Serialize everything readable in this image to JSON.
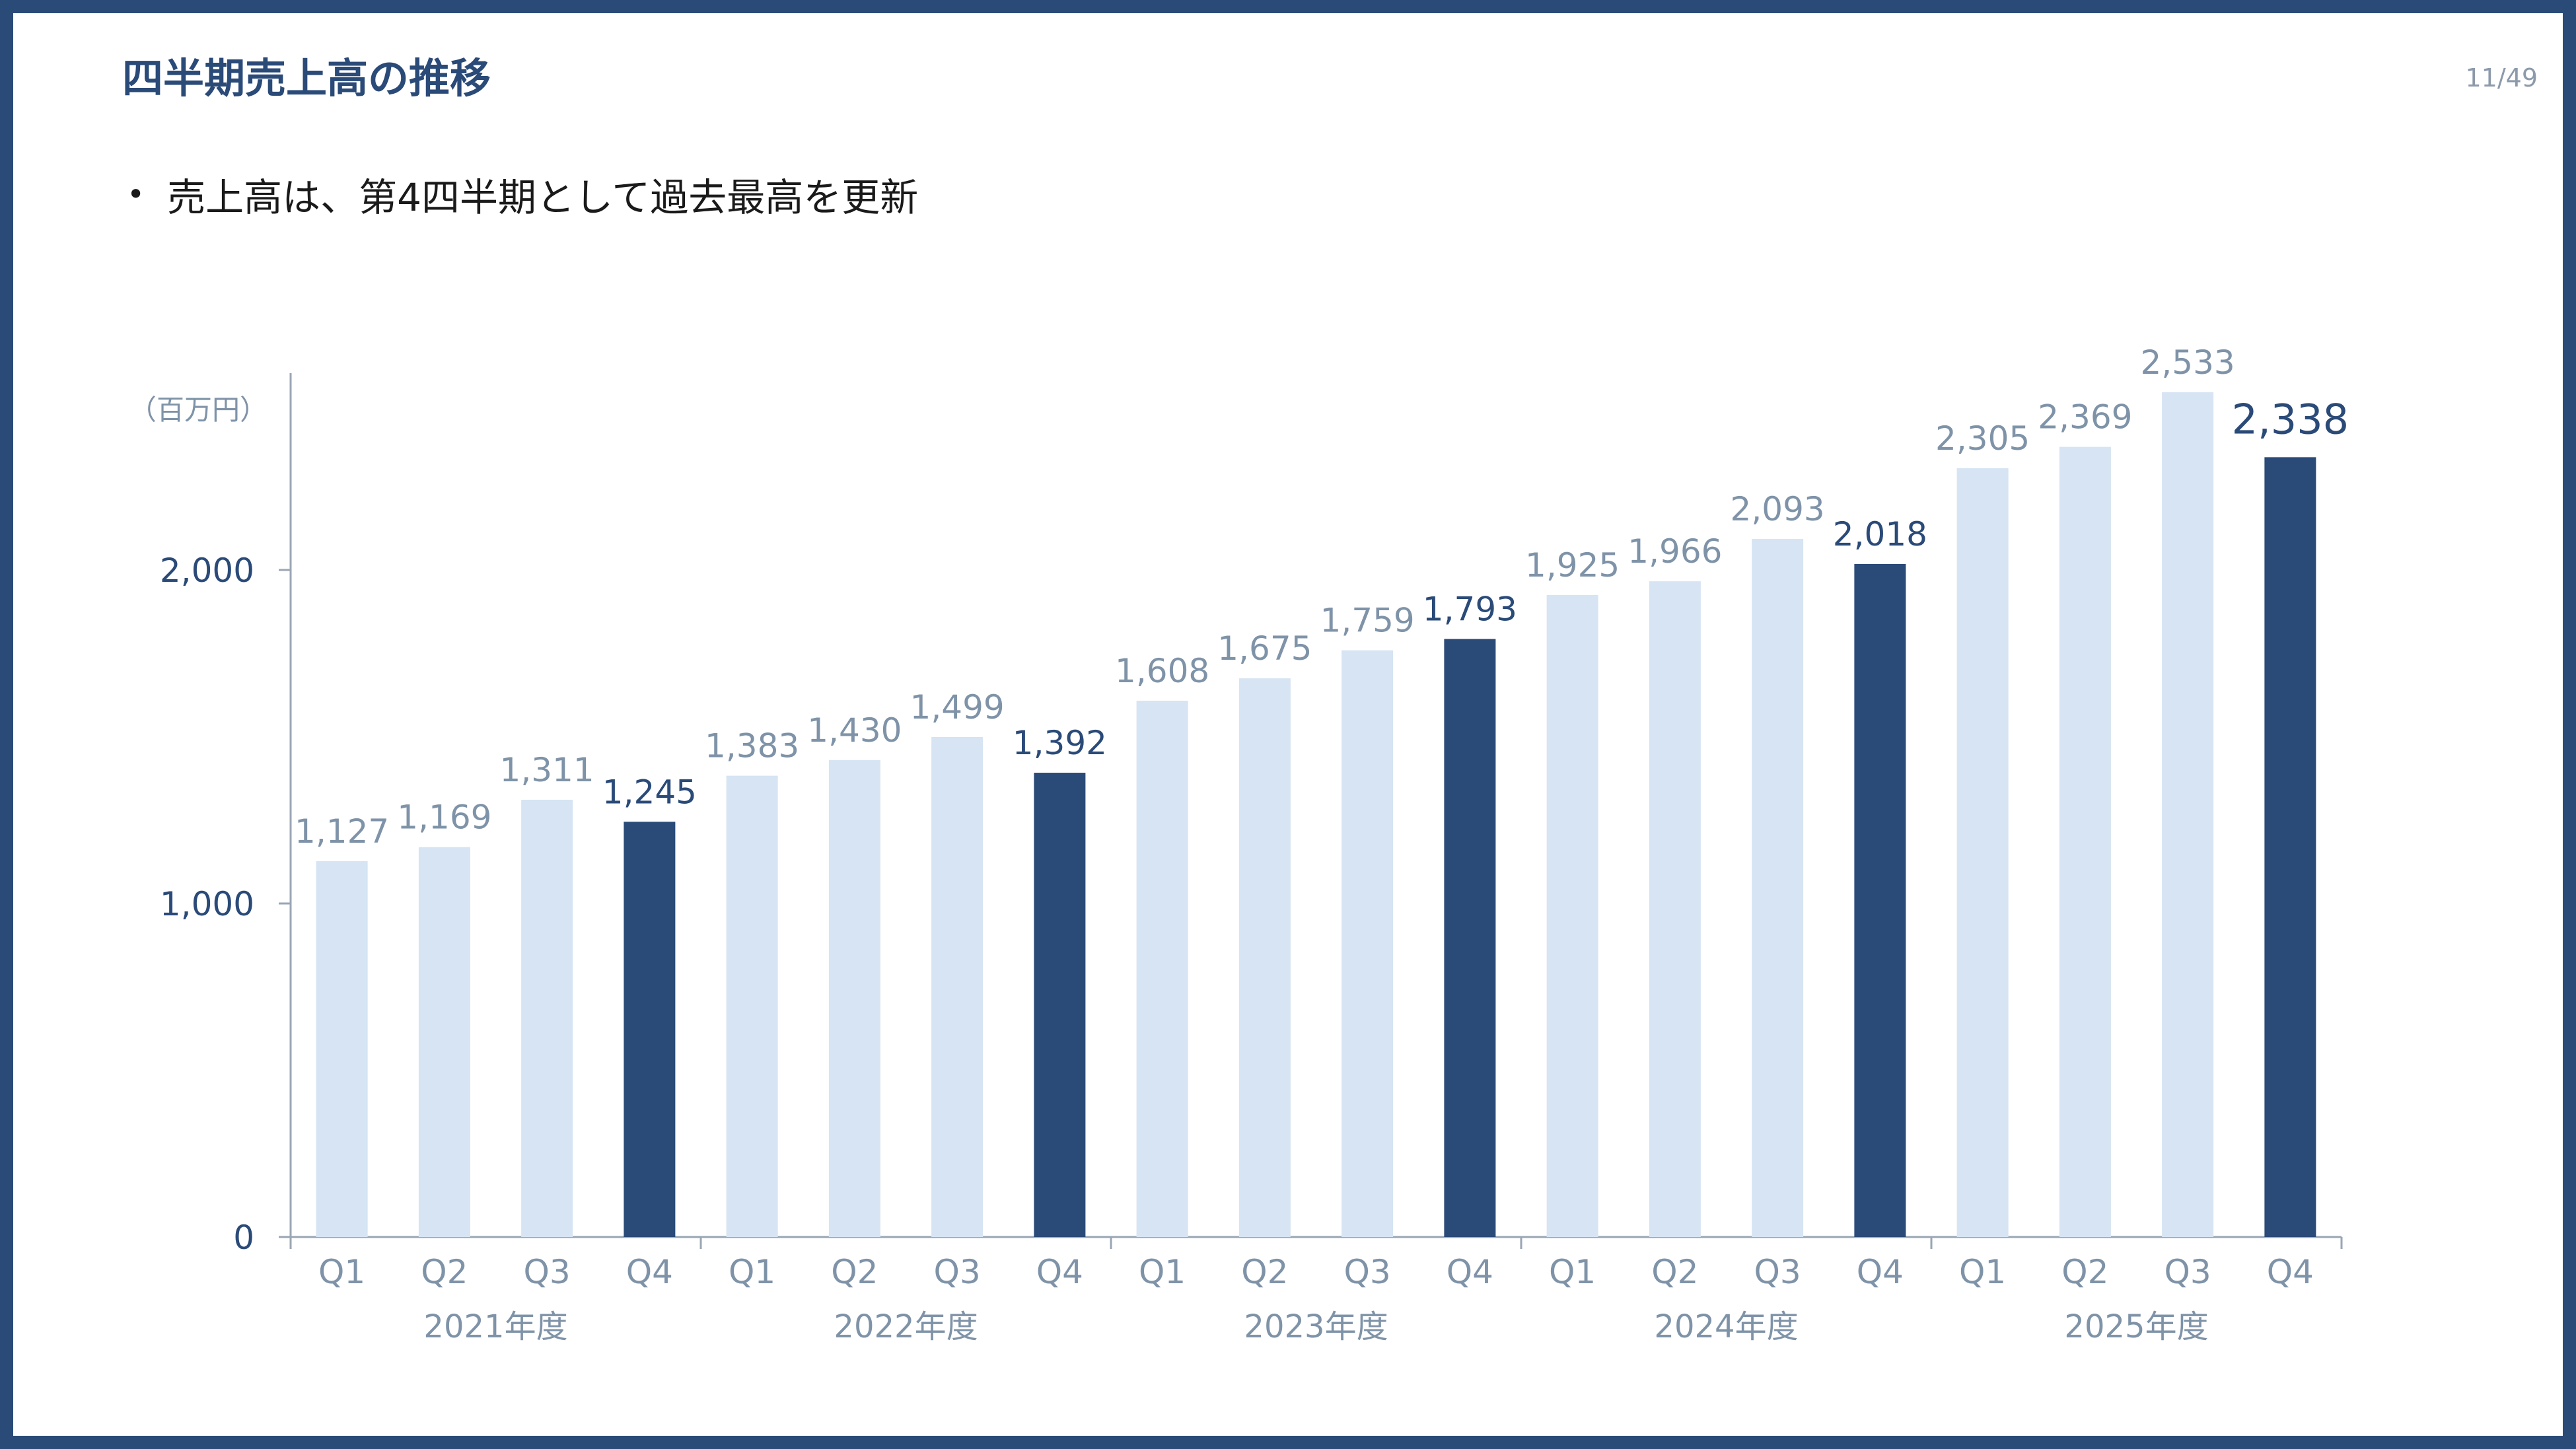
{
  "slide": {
    "title": "四半期売上高の推移",
    "page_number": "11/49",
    "bullets": [
      "売上高は、第4四半期として過去最高を更新"
    ]
  },
  "colors": {
    "frame": "#2a4a78",
    "title": "#2a4a78",
    "bar_light": "#d6e4f3",
    "bar_dark": "#2a4a78",
    "label_light": "#7f93a8",
    "label_dark": "#2a4a78",
    "axis": "#9aa6b4"
  },
  "chart_data": {
    "type": "bar",
    "unit_label": "（百万円）",
    "categories": [
      "Q1",
      "Q2",
      "Q3",
      "Q4",
      "Q1",
      "Q2",
      "Q3",
      "Q4",
      "Q1",
      "Q2",
      "Q3",
      "Q4",
      "Q1",
      "Q2",
      "Q3",
      "Q4",
      "Q1",
      "Q2",
      "Q3",
      "Q4"
    ],
    "groups": [
      {
        "label": "2021年度",
        "count": 4
      },
      {
        "label": "2022年度",
        "count": 4
      },
      {
        "label": "2023年度",
        "count": 4
      },
      {
        "label": "2024年度",
        "count": 4
      },
      {
        "label": "2025年度",
        "count": 4
      }
    ],
    "values": [
      1127,
      1169,
      1311,
      1245,
      1383,
      1430,
      1499,
      1392,
      1608,
      1675,
      1759,
      1793,
      1925,
      1966,
      2093,
      2018,
      2305,
      2369,
      2533,
      2338
    ],
    "data_labels": [
      "1,127",
      "1,169",
      "1,311",
      "1,245",
      "1,383",
      "1,430",
      "1,499",
      "1,392",
      "1,608",
      "1,675",
      "1,759",
      "1,793",
      "1,925",
      "1,966",
      "2,093",
      "2,018",
      "2,305",
      "2,369",
      "2,533",
      "2,338"
    ],
    "highlight": [
      false,
      false,
      false,
      true,
      false,
      false,
      false,
      true,
      false,
      false,
      false,
      true,
      false,
      false,
      false,
      true,
      false,
      false,
      false,
      true
    ],
    "emphasized_last": true,
    "yticks": [
      0,
      1000,
      2000
    ],
    "ytick_labels": [
      "0",
      "1,000",
      "2,000"
    ],
    "ylim": [
      0,
      2600
    ],
    "grid": false,
    "legend": "none"
  }
}
